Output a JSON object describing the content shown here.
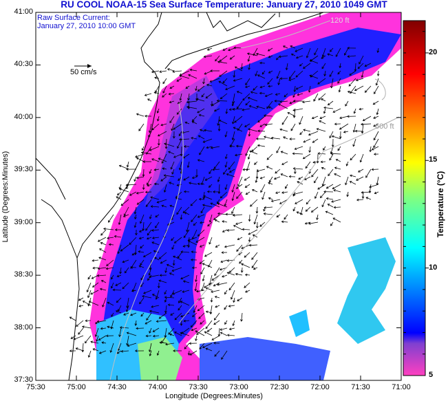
{
  "title": "RU COOL  NOAA-15  Sea Surface Temperature:  January 27, 2010 1049 GMT",
  "legend": {
    "line1": "Raw Surface Current:",
    "line2": "January 27, 2010 10:00 GMT",
    "scale_label": "50 cm/s"
  },
  "contours": {
    "c120": "120 ft",
    "c600": "600 ft"
  },
  "axes": {
    "xlabel": "Longitude (Degrees:Minutes)",
    "ylabel": "Latitude (Degrees:Minutes)",
    "xticks": [
      "75:30",
      "75:00",
      "74:30",
      "74:00",
      "73:30",
      "73:00",
      "72:30",
      "72:00",
      "71:30",
      "71:00"
    ],
    "yticks": [
      "41:00",
      "40:30",
      "40:00",
      "39:30",
      "39:00",
      "38:30",
      "38:00",
      "37:30"
    ]
  },
  "colorbar": {
    "title": "Temperature (°C)",
    "ticks": [
      "20",
      "15",
      "10",
      "5"
    ],
    "range": [
      5,
      21.5
    ],
    "colors": [
      "#ff40c0",
      "#8040d0",
      "#0000ff",
      "#0080ff",
      "#00ffff",
      "#80ff80",
      "#ffff00",
      "#ff8000",
      "#ff0000",
      "#800000"
    ]
  }
}
